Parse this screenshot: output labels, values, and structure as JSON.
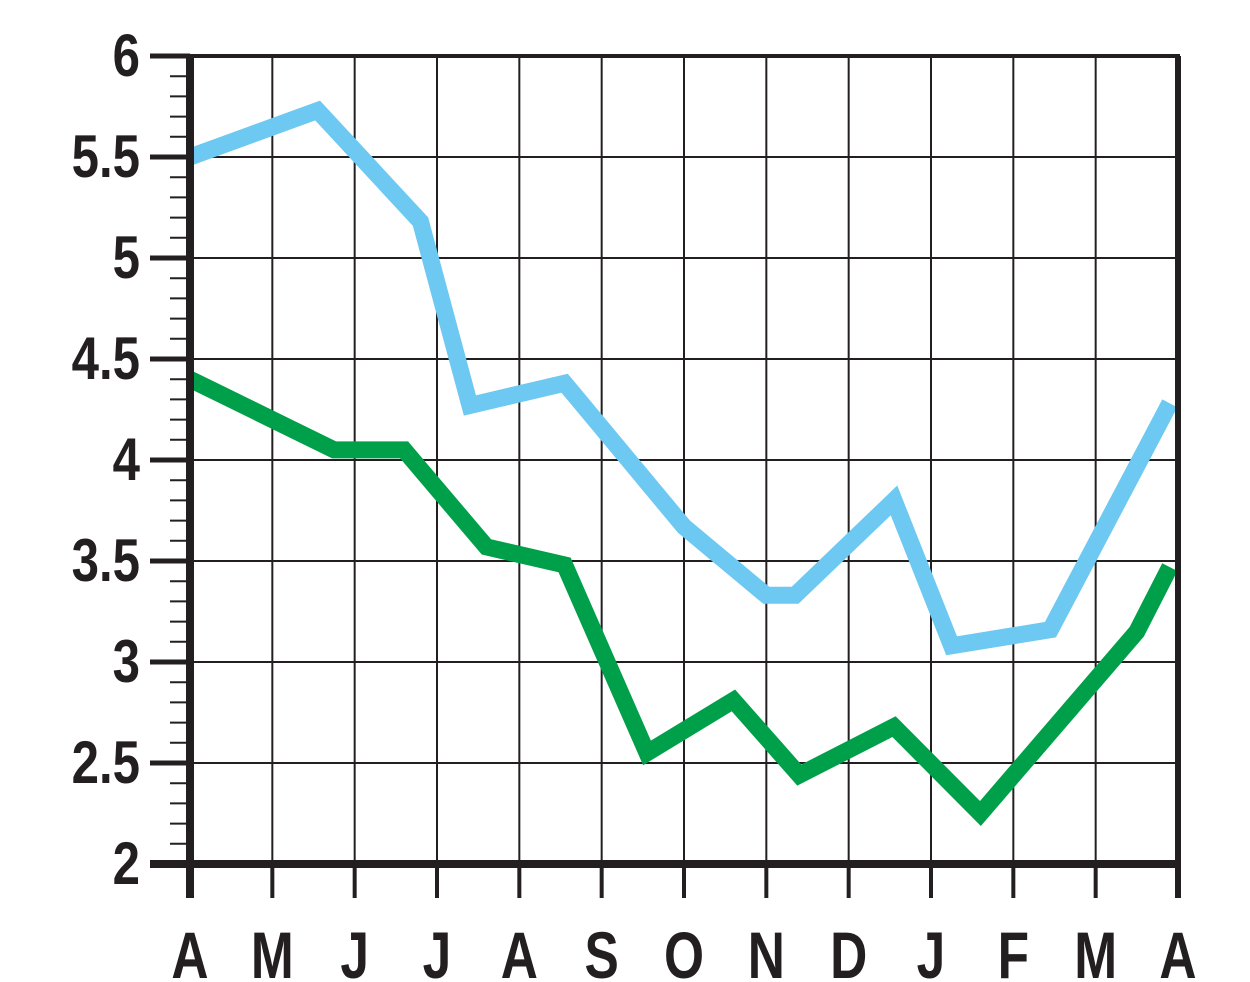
{
  "chart_data": {
    "type": "line",
    "title": "",
    "xlabel": "",
    "ylabel": "",
    "categories": [
      "A",
      "M",
      "J",
      "J",
      "A",
      "S",
      "O",
      "N",
      "D",
      "J",
      "F",
      "M",
      "A"
    ],
    "yticks": [
      "2",
      "2.5",
      "3",
      "3.5",
      "4",
      "4.5",
      "5",
      "5.5",
      "6"
    ],
    "ylim": [
      2,
      6
    ],
    "xlim": [
      0,
      12
    ],
    "minor_ticks_per_major": 5,
    "grid": true,
    "legend": "none",
    "series": [
      {
        "color": "#6dc8f2",
        "points": [
          {
            "x": 0,
            "y": 5.5
          },
          {
            "x": 1.55,
            "y": 5.73
          },
          {
            "x": 2.8,
            "y": 5.18
          },
          {
            "x": 3.4,
            "y": 4.27
          },
          {
            "x": 4.55,
            "y": 4.38
          },
          {
            "x": 6.0,
            "y": 3.67
          },
          {
            "x": 7.0,
            "y": 3.33
          },
          {
            "x": 7.35,
            "y": 3.33
          },
          {
            "x": 8.55,
            "y": 3.8
          },
          {
            "x": 9.25,
            "y": 3.08
          },
          {
            "x": 10.45,
            "y": 3.16
          },
          {
            "x": 11.9,
            "y": 4.28
          }
        ]
      },
      {
        "color": "#00a04b",
        "points": [
          {
            "x": 0,
            "y": 4.4
          },
          {
            "x": 1.75,
            "y": 4.05
          },
          {
            "x": 2.6,
            "y": 4.05
          },
          {
            "x": 3.6,
            "y": 3.57
          },
          {
            "x": 4.55,
            "y": 3.48
          },
          {
            "x": 5.55,
            "y": 2.55
          },
          {
            "x": 6.6,
            "y": 2.81
          },
          {
            "x": 7.4,
            "y": 2.44
          },
          {
            "x": 8.55,
            "y": 2.68
          },
          {
            "x": 9.6,
            "y": 2.25
          },
          {
            "x": 11.5,
            "y": 3.15
          },
          {
            "x": 11.9,
            "y": 3.47
          }
        ]
      }
    ]
  }
}
